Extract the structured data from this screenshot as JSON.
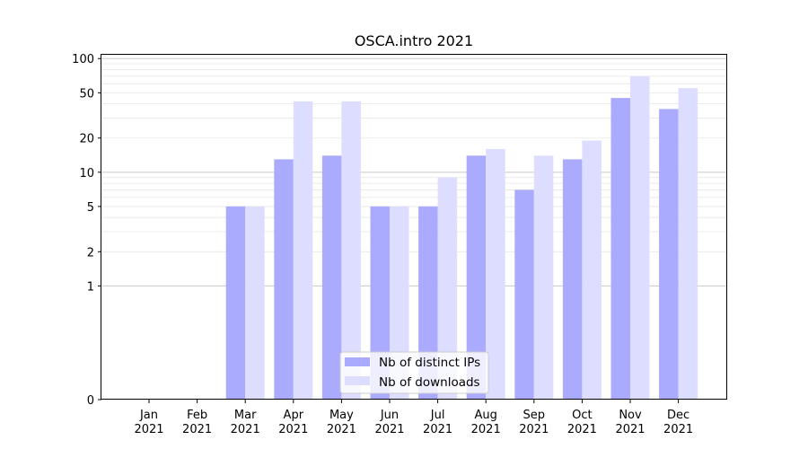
{
  "chart_data": {
    "type": "bar",
    "title": "OSCA.intro 2021",
    "xlabel": "",
    "ylabel": "",
    "categories": [
      "Jan\n2021",
      "Feb\n2021",
      "Mar\n2021",
      "Apr\n2021",
      "May\n2021",
      "Jun\n2021",
      "Jul\n2021",
      "Aug\n2021",
      "Sep\n2021",
      "Oct\n2021",
      "Nov\n2021",
      "Dec\n2021"
    ],
    "series": [
      {
        "name": "Nb of distinct IPs",
        "color": "#aaaaff",
        "values": [
          0,
          0,
          5,
          13,
          14,
          5,
          5,
          14,
          7,
          13,
          45,
          36
        ]
      },
      {
        "name": "Nb of downloads",
        "color": "#ddddff",
        "values": [
          0,
          0,
          5,
          42,
          42,
          5,
          9,
          16,
          14,
          19,
          70,
          55
        ]
      }
    ],
    "yscale": "symlog",
    "ylim": [
      0,
      110
    ],
    "yticks": [
      0,
      1,
      2,
      5,
      10,
      20,
      50,
      100
    ],
    "grid": true,
    "legend_position": "lower center"
  }
}
